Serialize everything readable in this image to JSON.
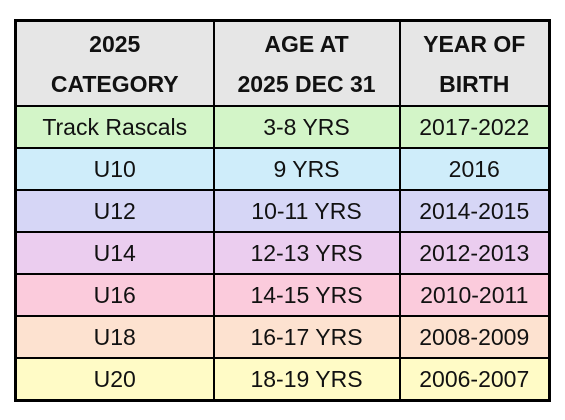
{
  "table": {
    "header": [
      [
        "2025",
        "CATEGORY"
      ],
      [
        "AGE AT",
        "2025 DEC 31"
      ],
      [
        "YEAR OF",
        "BIRTH"
      ]
    ],
    "rows": [
      [
        "Track Rascals",
        "3-8 YRS",
        "2017-2022"
      ],
      [
        "U10",
        "9 YRS",
        "2016"
      ],
      [
        "U12",
        "10-11 YRS",
        "2014-2015"
      ],
      [
        "U14",
        "12-13 YRS",
        "2012-2013"
      ],
      [
        "U16",
        "14-15 YRS",
        "2010-2011"
      ],
      [
        "U18",
        "16-17 YRS",
        "2008-2009"
      ],
      [
        "U20",
        "18-19 YRS",
        "2006-2007"
      ]
    ],
    "row_colors": [
      "#d3f5c8",
      "#cfedfa",
      "#d6d6f6",
      "#ebcdef",
      "#fbcbdc",
      "#fde2d0",
      "#fffbc6"
    ],
    "header_color": "#e6e6e6"
  }
}
